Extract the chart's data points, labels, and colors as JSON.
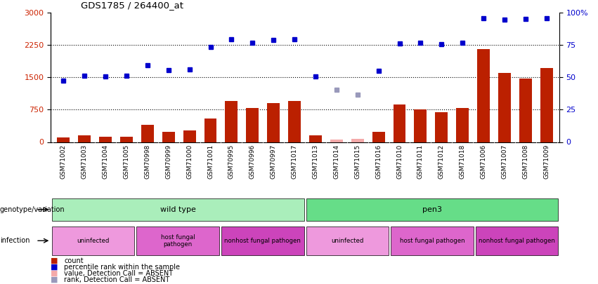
{
  "title": "GDS1785 / 264400_at",
  "samples": [
    "GSM71002",
    "GSM71003",
    "GSM71004",
    "GSM71005",
    "GSM70998",
    "GSM70999",
    "GSM71000",
    "GSM71001",
    "GSM70995",
    "GSM70996",
    "GSM70997",
    "GSM71017",
    "GSM71013",
    "GSM71014",
    "GSM71015",
    "GSM71016",
    "GSM71010",
    "GSM71011",
    "GSM71012",
    "GSM71018",
    "GSM71006",
    "GSM71007",
    "GSM71008",
    "GSM71009"
  ],
  "counts": [
    100,
    150,
    130,
    130,
    400,
    230,
    270,
    550,
    950,
    790,
    900,
    950,
    150,
    null,
    null,
    230,
    870,
    750,
    700,
    790,
    2150,
    1600,
    1480,
    1720
  ],
  "absent_counts": [
    null,
    null,
    null,
    null,
    null,
    null,
    null,
    null,
    null,
    null,
    null,
    null,
    null,
    65,
    80,
    null,
    null,
    null,
    null,
    null,
    null,
    null,
    null,
    null
  ],
  "percentile_ranks": [
    1430,
    1540,
    1530,
    1540,
    1790,
    1670,
    1680,
    2200,
    2390,
    2300,
    2370,
    2390,
    1530,
    null,
    null,
    1660,
    2290,
    2310,
    2270,
    2310,
    2870,
    2840,
    2860,
    2870
  ],
  "absent_ranks": [
    null,
    null,
    null,
    null,
    null,
    null,
    null,
    null,
    null,
    null,
    null,
    null,
    null,
    1210,
    1100,
    null,
    null,
    null,
    null,
    null,
    null,
    null,
    null,
    null
  ],
  "ylim_left": [
    0,
    3000
  ],
  "ylim_right": [
    0,
    100
  ],
  "yticks_left": [
    0,
    750,
    1500,
    2250,
    3000
  ],
  "yticks_right": [
    0,
    25,
    50,
    75,
    100
  ],
  "hlines": [
    750,
    1500,
    2250
  ],
  "bar_color": "#bb2000",
  "absent_bar_color": "#f4aaaa",
  "dot_color": "#0000cc",
  "absent_dot_color": "#9999bb",
  "bg_color": "#ffffff",
  "genotype_groups": [
    {
      "label": "wild type",
      "start": 0,
      "end": 11,
      "color": "#aaeebb"
    },
    {
      "label": "pen3",
      "start": 12,
      "end": 23,
      "color": "#66dd88"
    }
  ],
  "infection_groups": [
    {
      "label": "uninfected",
      "start": 0,
      "end": 3,
      "color": "#ee99dd"
    },
    {
      "label": "host fungal\npathogen",
      "start": 4,
      "end": 7,
      "color": "#dd66cc"
    },
    {
      "label": "nonhost fungal pathogen",
      "start": 8,
      "end": 11,
      "color": "#cc44bb"
    },
    {
      "label": "uninfected",
      "start": 12,
      "end": 15,
      "color": "#ee99dd"
    },
    {
      "label": "host fungal pathogen",
      "start": 16,
      "end": 19,
      "color": "#dd66cc"
    },
    {
      "label": "nonhost fungal pathogen",
      "start": 20,
      "end": 23,
      "color": "#cc44bb"
    }
  ],
  "legend_items": [
    {
      "label": "count",
      "color": "#bb2000"
    },
    {
      "label": "percentile rank within the sample",
      "color": "#0000cc"
    },
    {
      "label": "value, Detection Call = ABSENT",
      "color": "#f4aaaa"
    },
    {
      "label": "rank, Detection Call = ABSENT",
      "color": "#9999bb"
    }
  ],
  "left_label_color": "#cc2200",
  "right_label_color": "#0000cc"
}
